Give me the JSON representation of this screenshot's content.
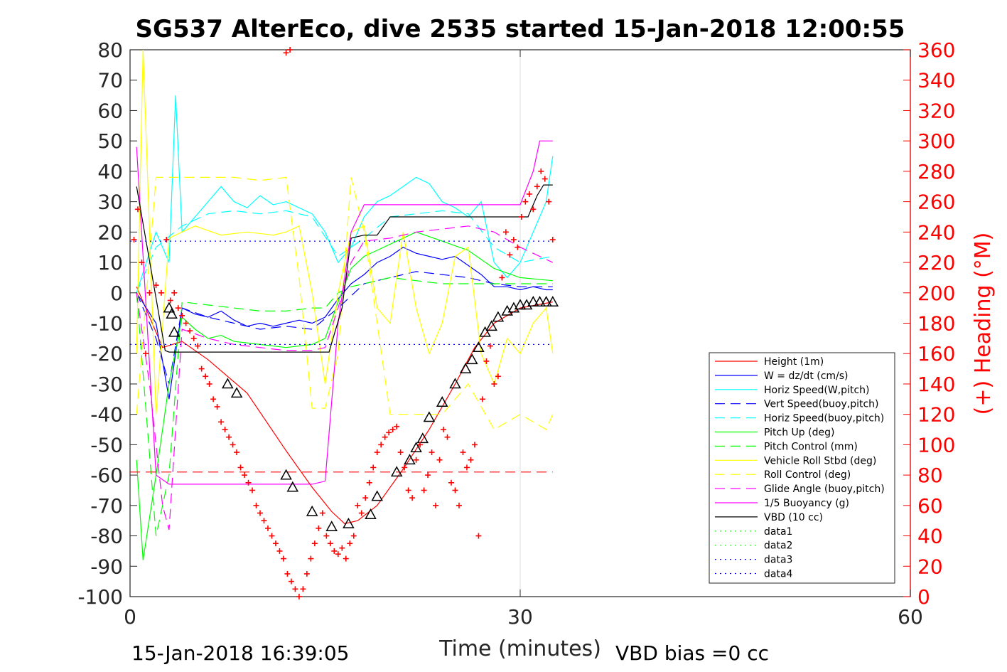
{
  "chart_data": {
    "type": "line",
    "title": "SG537 AlterEco, dive 2535 started 15-Jan-2018 12:00:55",
    "xlabel": "Time (minutes)",
    "ylabel": "",
    "ylabel_right": "(+) Heading (°M)",
    "xlim": [
      0,
      60
    ],
    "ylim": [
      -100,
      80
    ],
    "ylim_right": [
      0,
      360
    ],
    "x_ticks": [
      0,
      30,
      60
    ],
    "y_ticks": [
      80,
      70,
      60,
      50,
      40,
      30,
      20,
      10,
      0,
      -10,
      -20,
      -30,
      -40,
      -50,
      -60,
      -70,
      -80,
      -90,
      -100
    ],
    "y_ticks_right": [
      360,
      340,
      320,
      300,
      280,
      260,
      240,
      220,
      200,
      180,
      160,
      140,
      120,
      100,
      80,
      60,
      40,
      20,
      0
    ],
    "grid": "x at 30 only",
    "legend_position": "lower-right",
    "footer_left": "15-Jan-2018 16:39:05",
    "footer_right": "VBD bias =0 cc",
    "series": [
      {
        "name": "Height (1m)",
        "color": "#ff0000",
        "style": "solid",
        "x": [
          0.5,
          2.5,
          4,
          6,
          9,
          12,
          14,
          15.5,
          16.5,
          17.5,
          19,
          21,
          23,
          25,
          26.5,
          28,
          30,
          32.5
        ],
        "y": [
          2,
          -18,
          -16,
          -22,
          -33,
          -52,
          -64,
          -72,
          -76,
          -75,
          -70,
          -58,
          -45,
          -30,
          -18,
          -10,
          -5,
          -3
        ]
      },
      {
        "name": "W = dz/dt (cm/s)",
        "color": "#0000ff",
        "style": "solid",
        "x": [
          0.5,
          2,
          3,
          3.5,
          4,
          5,
          6,
          7,
          8,
          9,
          10,
          11,
          12,
          13,
          14,
          15,
          16,
          17,
          18,
          19,
          20,
          21,
          22,
          23,
          24,
          25,
          26,
          27,
          28,
          29,
          30,
          31,
          32,
          32.5
        ],
        "y": [
          0,
          -10,
          -35,
          -20,
          -5,
          -7,
          -8,
          -6,
          -9,
          -11,
          -10,
          -11,
          -10,
          -9,
          -10,
          -8,
          -2,
          3,
          6,
          10,
          12,
          15,
          13,
          12,
          11,
          12,
          9,
          6,
          2,
          2,
          1,
          2,
          1,
          1
        ]
      },
      {
        "name": "Horiz Speed(W,pitch)",
        "color": "#00ffff",
        "style": "solid",
        "x": [
          0.5,
          2,
          3,
          3.5,
          4,
          5,
          6,
          7,
          8,
          9,
          10,
          11,
          12,
          13,
          14,
          15,
          16,
          17,
          18,
          19,
          20,
          21,
          22,
          23,
          24,
          25,
          26,
          27,
          28,
          29,
          30,
          31,
          32,
          32.5
        ],
        "y": [
          0,
          20,
          10,
          65,
          20,
          25,
          30,
          35,
          30,
          28,
          32,
          29,
          30,
          28,
          26,
          20,
          10,
          15,
          25,
          30,
          32,
          35,
          38,
          36,
          30,
          28,
          25,
          30,
          10,
          5,
          10,
          20,
          30,
          45
        ]
      },
      {
        "name": "Vert Speed(buoy,pitch)",
        "color": "#0000ff",
        "style": "dashed",
        "x": [
          0.5,
          2,
          3,
          4,
          6,
          8,
          10,
          12,
          14,
          16,
          18,
          20,
          22,
          24,
          26,
          28,
          30,
          32.5
        ],
        "y": [
          0,
          -15,
          -30,
          -5,
          -8,
          -10,
          -12,
          -11,
          -12,
          -5,
          3,
          5,
          7,
          6,
          5,
          3,
          2,
          2
        ]
      },
      {
        "name": "Horiz Speed(buoy,pitch)",
        "color": "#00ffff",
        "style": "dashed",
        "x": [
          0.5,
          2,
          4,
          6,
          8,
          10,
          12,
          14,
          16,
          18,
          20,
          22,
          24,
          26,
          28,
          30,
          32.5
        ],
        "y": [
          0,
          15,
          22,
          26,
          27,
          26,
          27,
          25,
          12,
          18,
          25,
          26,
          27,
          26,
          15,
          10,
          12
        ]
      },
      {
        "name": "Pitch Up (deg)",
        "color": "#00ff00",
        "style": "solid",
        "x": [
          0.5,
          1,
          2,
          3,
          4,
          5,
          6,
          7,
          8,
          10,
          12,
          14,
          15,
          16,
          17,
          18,
          19,
          20,
          21,
          22,
          24,
          26,
          28,
          30,
          32.5
        ],
        "y": [
          -55,
          -88,
          -60,
          -30,
          -8,
          -12,
          -15,
          -14,
          -16,
          -17,
          -18,
          -17,
          -15,
          -3,
          8,
          12,
          14,
          16,
          18,
          20,
          17,
          14,
          8,
          5,
          4
        ]
      },
      {
        "name": "Pitch Control (mm)",
        "color": "#00ff00",
        "style": "dashed",
        "x": [
          0.5,
          2,
          3,
          4,
          8,
          10,
          12,
          14,
          15,
          16,
          17,
          18,
          20,
          22,
          24,
          26,
          28,
          30,
          32.5
        ],
        "y": [
          0,
          -80,
          -60,
          -3,
          -5,
          -6,
          -6,
          -5,
          -5,
          0,
          2,
          3,
          5,
          4,
          3,
          3,
          3,
          3,
          3
        ]
      },
      {
        "name": "Vehicle Roll Stbd (deg)",
        "color": "#ffff00",
        "style": "solid",
        "x": [
          0.5,
          1,
          2,
          3,
          4,
          5,
          7,
          9,
          11,
          12,
          13,
          14,
          15,
          16,
          17,
          18,
          19,
          20,
          21,
          22,
          23,
          24,
          25,
          26,
          27,
          28,
          29,
          30,
          31,
          32,
          32.5
        ],
        "y": [
          -20,
          80,
          -40,
          18,
          20,
          22,
          19,
          20,
          19,
          20,
          22,
          0,
          -30,
          0,
          20,
          22,
          -5,
          -10,
          20,
          -5,
          -20,
          -10,
          12,
          15,
          -20,
          -30,
          -15,
          -20,
          -10,
          -5,
          -20
        ]
      },
      {
        "name": "Roll Control (deg)",
        "color": "#ffff00",
        "style": "dashed",
        "x": [
          0.5,
          2,
          4,
          6,
          8,
          10,
          12,
          13,
          14,
          15,
          16,
          17,
          18,
          20,
          22,
          24,
          26,
          28,
          30,
          32,
          32.5
        ],
        "y": [
          -40,
          38,
          38,
          38,
          38,
          37,
          38,
          5,
          -38,
          -38,
          -20,
          38,
          20,
          -40,
          -40,
          -40,
          -30,
          -45,
          -40,
          -45,
          -40
        ]
      },
      {
        "name": "Glide Angle (buoy,pitch)",
        "color": "#ff00ff",
        "style": "dashed",
        "x": [
          0.5,
          1.5,
          2.5,
          3,
          4,
          6,
          8,
          10,
          12,
          14,
          15,
          16,
          17,
          18,
          20,
          22,
          24,
          26,
          28,
          30,
          32.5
        ],
        "y": [
          0,
          -30,
          -70,
          -78,
          -12,
          -15,
          -17,
          -18,
          -19,
          -19,
          -18,
          -5,
          10,
          17,
          18,
          20,
          21,
          22,
          20,
          15,
          10
        ]
      },
      {
        "name": "1/5 Buoyancy (g)",
        "color": "#ff00ff",
        "style": "solid",
        "x": [
          0.5,
          2,
          3,
          4,
          6,
          8,
          10,
          12,
          14,
          15,
          16,
          17,
          18,
          20,
          22,
          24,
          26,
          28,
          30,
          31,
          31.5,
          32.5
        ],
        "y": [
          48,
          -60,
          -63,
          -63,
          -63,
          -63,
          -63,
          -63,
          -63,
          -62,
          -10,
          20,
          29,
          29,
          29,
          29,
          29,
          29,
          29,
          40,
          50,
          50
        ]
      },
      {
        "name": "VBD (10 cc)",
        "color": "#000000",
        "style": "solid",
        "x": [
          0.5,
          2.7,
          3,
          4,
          6,
          8,
          10,
          12,
          14,
          15.3,
          16.3,
          17,
          18,
          19,
          20,
          22,
          24,
          26,
          28,
          30,
          30.6,
          31.3,
          31.8,
          32.5
        ],
        "y": [
          35,
          -19,
          -19.5,
          -19.5,
          -19.5,
          -19.5,
          -19.5,
          -19.5,
          -19.5,
          -19.5,
          -5,
          18,
          19,
          19,
          25,
          25,
          25,
          25,
          25,
          25,
          25,
          32,
          35.5,
          35.5
        ]
      },
      {
        "name": "data1",
        "color": "#00ff00",
        "style": "dotted",
        "x": [],
        "y": []
      },
      {
        "name": "data2",
        "color": "#00ff00",
        "style": "dotted",
        "x": [],
        "y": []
      },
      {
        "name": "data3",
        "color": "#0000ff",
        "style": "dotted",
        "x": [
          0,
          32.5
        ],
        "y": [
          17,
          17
        ]
      },
      {
        "name": "data4",
        "color": "#0000ff",
        "style": "dotted",
        "x": [
          0,
          32.5
        ],
        "y": [
          -17,
          -17
        ]
      }
    ],
    "height_dashed_ref": {
      "color": "#ff0000",
      "style": "dashed",
      "x": [
        0,
        32.5
      ],
      "y": [
        -59,
        -59
      ]
    },
    "black_triangles": {
      "color": "#000000",
      "x": [
        3,
        3.2,
        3.4,
        7.5,
        8.2,
        12,
        12.5,
        14,
        15.5,
        16.8,
        18.5,
        19,
        20.5,
        21.5,
        22,
        22.5,
        23,
        24,
        25,
        25.8,
        26.3,
        26.8,
        27.3,
        27.8,
        28.3,
        29,
        29.5,
        30,
        30.5,
        31,
        31.5,
        32,
        32.5
      ],
      "y": [
        -5,
        -7,
        -13,
        -30,
        -33,
        -60,
        -64,
        -72,
        -77,
        -76,
        -73,
        -67,
        -59,
        -55,
        -51,
        -48,
        -41,
        -36,
        -30,
        -25,
        -22,
        -18,
        -13,
        -11,
        -8,
        -6,
        -5,
        -4,
        -4,
        -3,
        -3,
        -3,
        -3
      ]
    },
    "heading_points": {
      "color": "#ff0000",
      "axis": "right",
      "x": [
        0.3,
        0.6,
        0.9,
        1.2,
        1.5,
        2.0,
        2.4,
        2.8,
        3.1,
        3.4,
        3.7,
        4.0,
        4.3,
        4.6,
        4.9,
        5.2,
        5.5,
        5.8,
        6.1,
        6.4,
        6.7,
        7.0,
        7.3,
        7.6,
        7.9,
        8.2,
        8.5,
        8.8,
        9.1,
        9.4,
        9.7,
        10.0,
        10.3,
        10.6,
        10.9,
        11.2,
        11.5,
        11.8,
        12.1,
        12.4,
        12.7,
        13.0,
        13.3,
        13.6,
        13.9,
        14.2,
        14.5,
        14.8,
        15.1,
        15.4,
        15.7,
        16.0,
        16.3,
        16.6,
        16.9,
        17.2,
        17.5,
        17.8,
        18.1,
        18.4,
        18.7,
        19.0,
        19.3,
        19.6,
        19.9,
        20.2,
        20.5,
        20.8,
        21.1,
        21.4,
        21.7,
        22.0,
        22.3,
        22.6,
        22.9,
        23.2,
        23.5,
        23.8,
        24.1,
        24.4,
        24.7,
        25.0,
        25.3,
        25.6,
        25.9,
        26.2,
        26.5,
        26.8,
        27.1,
        27.4,
        27.7,
        28.0,
        28.3,
        28.6,
        28.9,
        29.2,
        29.5,
        29.8,
        30.1,
        30.4,
        30.7,
        31.0,
        31.3,
        31.6,
        31.9,
        32.2,
        32.5,
        12.0,
        12.3
      ],
      "y": [
        235,
        255,
        220,
        160,
        200,
        205,
        200,
        235,
        195,
        200,
        190,
        185,
        180,
        175,
        170,
        165,
        150,
        145,
        140,
        130,
        125,
        115,
        110,
        105,
        100,
        95,
        85,
        80,
        75,
        70,
        60,
        55,
        50,
        45,
        40,
        35,
        30,
        25,
        15,
        10,
        5,
        0,
        5,
        15,
        25,
        35,
        45,
        55,
        40,
        35,
        30,
        28,
        32,
        25,
        35,
        40,
        60,
        55,
        65,
        75,
        85,
        95,
        100,
        105,
        108,
        110,
        112,
        95,
        85,
        70,
        65,
        90,
        100,
        70,
        80,
        95,
        60,
        90,
        110,
        105,
        75,
        70,
        60,
        95,
        85,
        90,
        100,
        40,
        130,
        155,
        165,
        140,
        145,
        210,
        240,
        225,
        235,
        230,
        250,
        260,
        265,
        255,
        270,
        280,
        275,
        260,
        235,
        358,
        360
      ]
    }
  }
}
